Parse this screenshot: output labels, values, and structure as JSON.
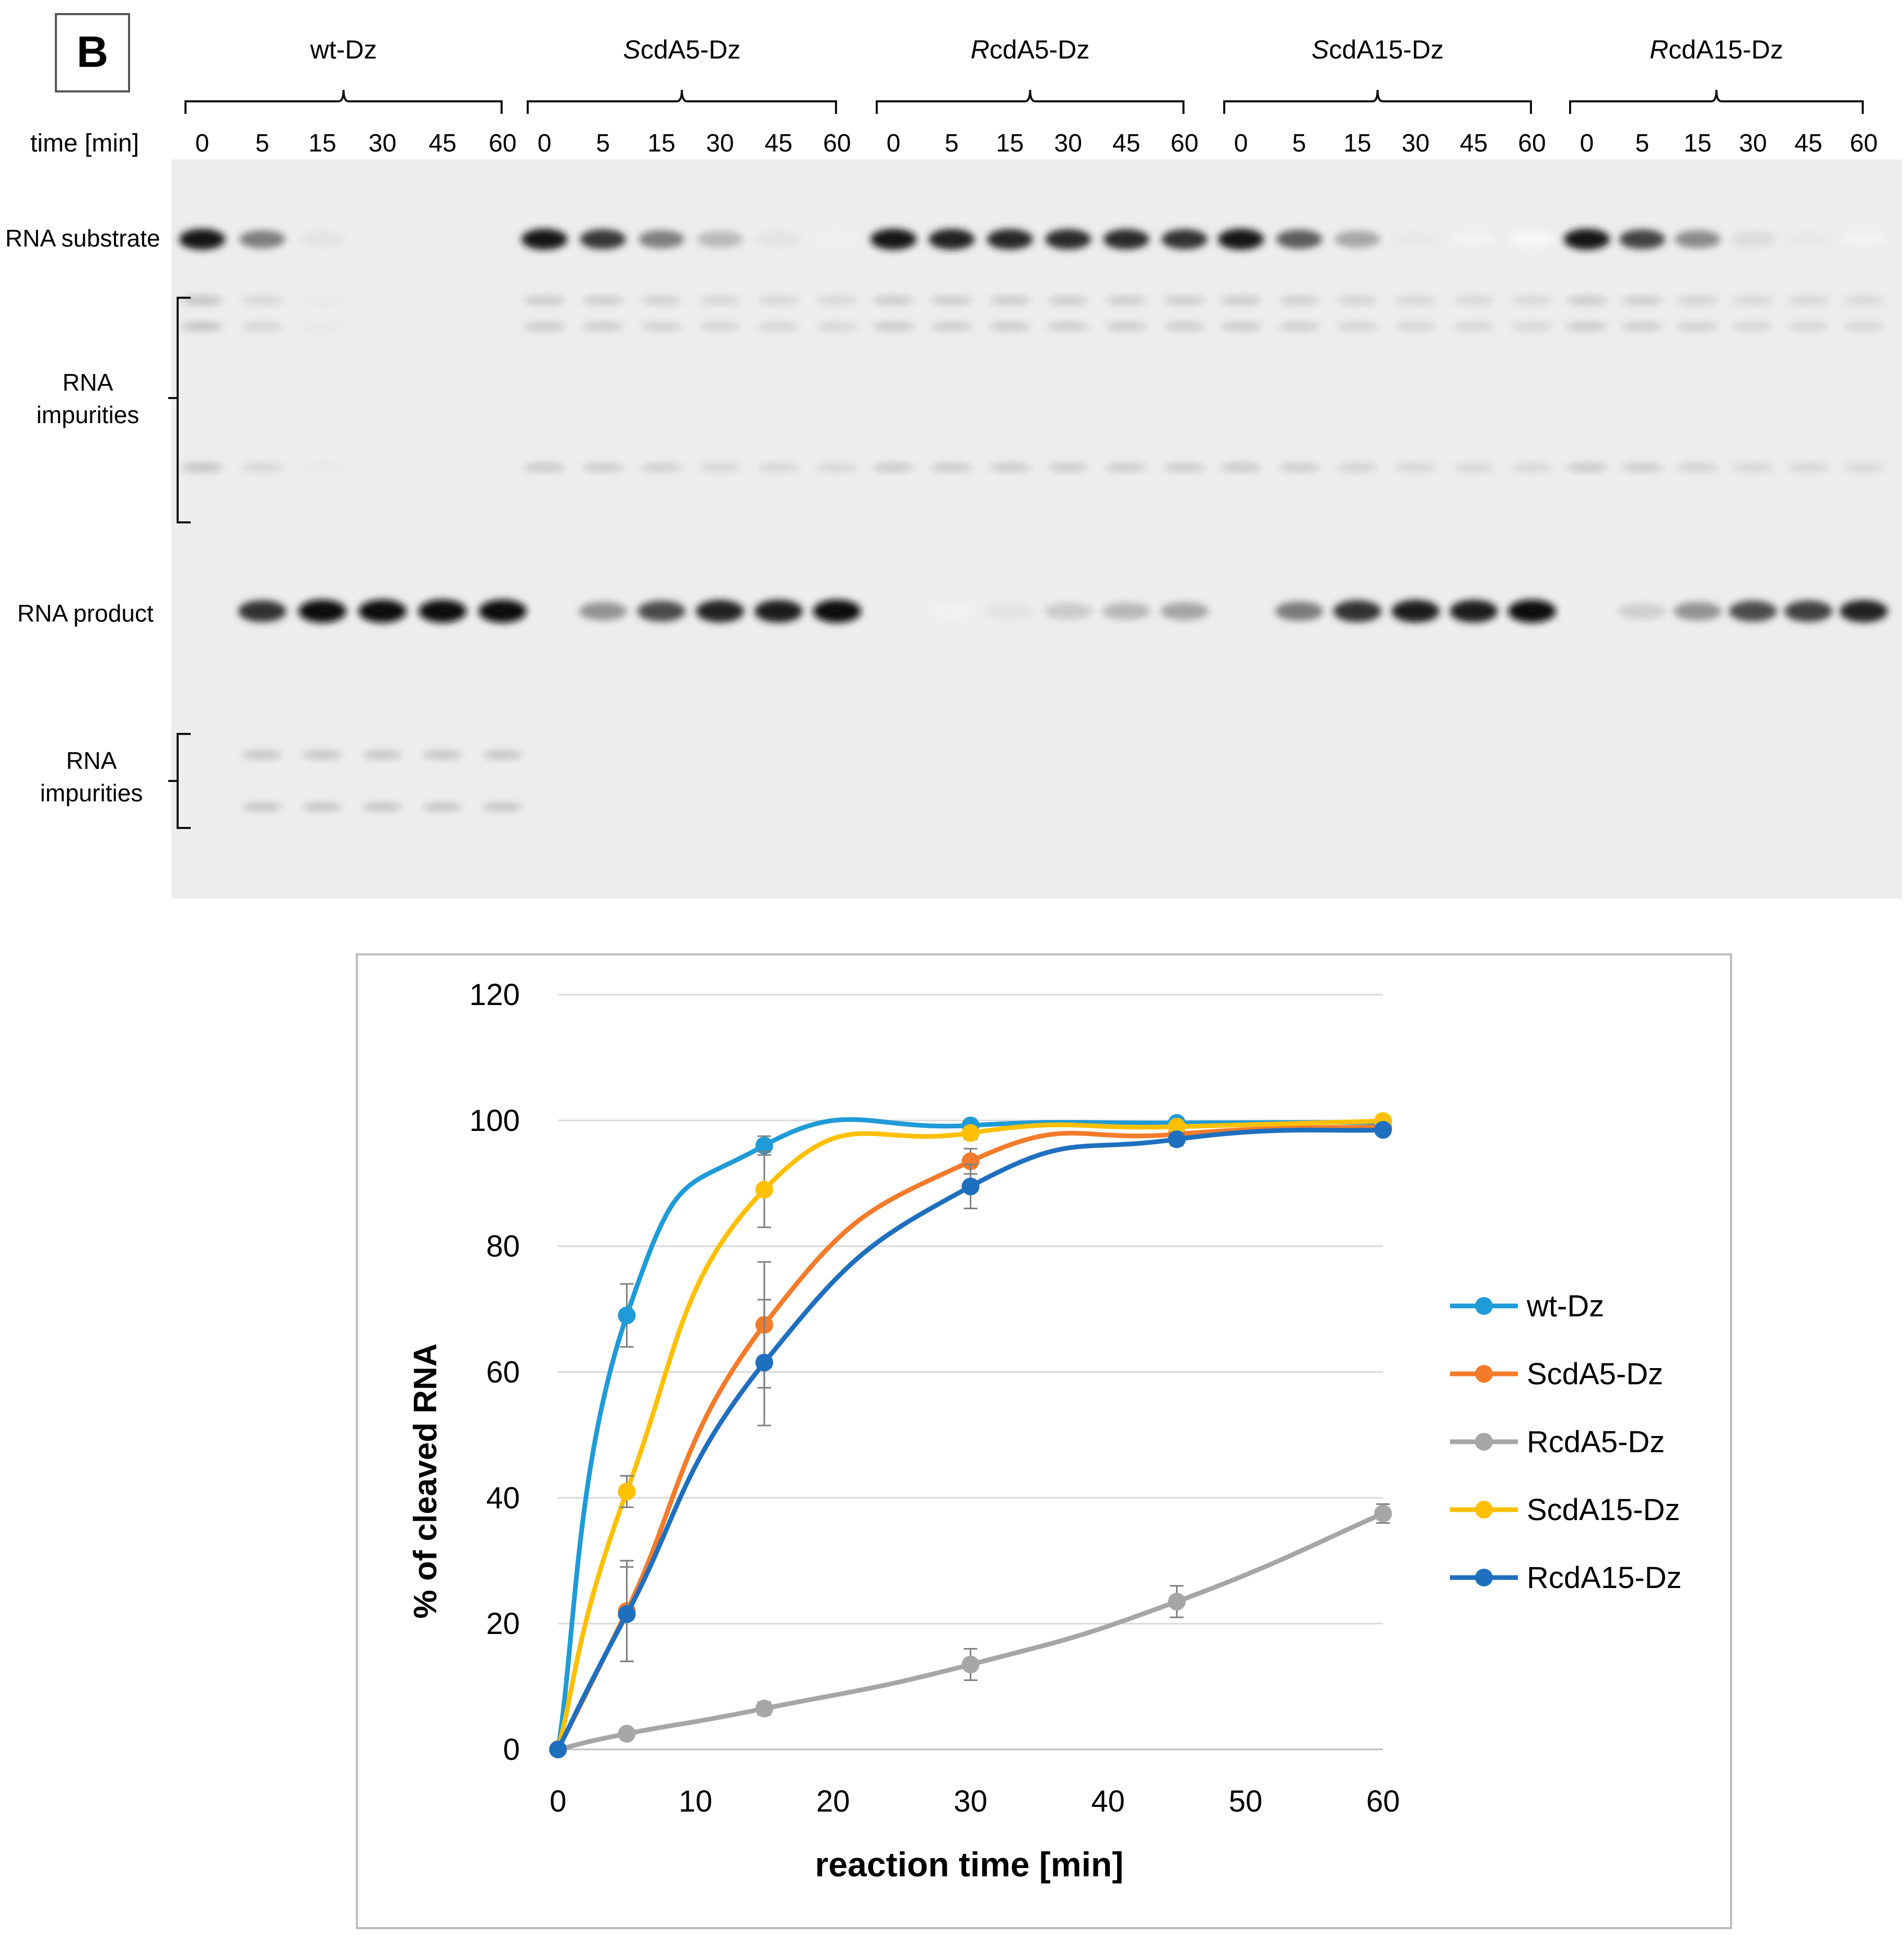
{
  "panel_label": "B",
  "gel": {
    "time_axis_label": "time [min]",
    "groups": [
      {
        "name": "wt-Dz",
        "prefix": "",
        "rest": "wt-Dz"
      },
      {
        "name": "ScdA5-Dz",
        "prefix": "S",
        "rest": "cdA5-Dz"
      },
      {
        "name": "RcdA5-Dz",
        "prefix": "R",
        "rest": "cdA5-Dz"
      },
      {
        "name": "ScdA15-Dz",
        "prefix": "S",
        "rest": "cdA15-Dz"
      },
      {
        "name": "RcdA15-Dz",
        "prefix": "R",
        "rest": "cdA15-Dz"
      }
    ],
    "time_points": [
      "0",
      "5",
      "15",
      "30",
      "45",
      "60"
    ],
    "band_labels": {
      "substrate": "RNA substrate",
      "impurities_top_line1": "RNA",
      "impurities_top_line2": "impurities",
      "product": "RNA product",
      "impurities_bottom_line1": "RNA",
      "impurities_bottom_line2": "impurities"
    },
    "substrate_intensity": [
      [
        1.0,
        0.55,
        0.12,
        0.0,
        0.0,
        0.0
      ],
      [
        1.0,
        0.85,
        0.55,
        0.3,
        0.12,
        0.06
      ],
      [
        1.0,
        0.95,
        0.92,
        0.9,
        0.9,
        0.88
      ],
      [
        1.0,
        0.7,
        0.38,
        0.1,
        0.05,
        0.03
      ],
      [
        1.0,
        0.8,
        0.5,
        0.15,
        0.1,
        0.05
      ]
    ],
    "product_intensity": [
      [
        0.0,
        0.85,
        1.0,
        1.0,
        1.0,
        1.0
      ],
      [
        0.0,
        0.45,
        0.75,
        0.92,
        0.95,
        1.0
      ],
      [
        0.0,
        0.06,
        0.12,
        0.22,
        0.3,
        0.38
      ],
      [
        0.0,
        0.55,
        0.85,
        0.95,
        0.95,
        1.0
      ],
      [
        0.0,
        0.2,
        0.45,
        0.75,
        0.8,
        0.92
      ]
    ]
  },
  "chart_data": {
    "type": "line",
    "title": "",
    "xlabel": "reaction time [min]",
    "ylabel": "% of cleaved RNA",
    "x": [
      0,
      5,
      15,
      30,
      45,
      60
    ],
    "xlim": [
      0,
      60
    ],
    "ylim": [
      0,
      120
    ],
    "xticks": [
      0,
      10,
      20,
      30,
      40,
      50,
      60
    ],
    "yticks": [
      0,
      20,
      40,
      60,
      80,
      100,
      120
    ],
    "grid": "horizontal",
    "legend_position": "right",
    "series": [
      {
        "name": "wt-Dz",
        "color": "#1f9bd7",
        "values": [
          0,
          69,
          96,
          99.2,
          99.6,
          99.7
        ],
        "errors": [
          0,
          5,
          1.5,
          0.5,
          0.5,
          0.5
        ]
      },
      {
        "name": "ScdA5-Dz",
        "color": "#f47b2b",
        "values": [
          0,
          22,
          67.5,
          93.5,
          97.8,
          99
        ],
        "errors": [
          0,
          8,
          10,
          2,
          0.8,
          0.5
        ]
      },
      {
        "name": "RcdA5-Dz",
        "color": "#a6a6a6",
        "values": [
          0,
          2.5,
          6.5,
          13.5,
          23.5,
          37.5
        ],
        "errors": [
          0,
          0.5,
          1,
          2.5,
          2.5,
          1.5
        ]
      },
      {
        "name": "ScdA15-Dz",
        "color": "#ffc000",
        "values": [
          0,
          41,
          89,
          98,
          99,
          99.9
        ],
        "errors": [
          0,
          2.5,
          6,
          1,
          0.5,
          0.3
        ]
      },
      {
        "name": "RcdA15-Dz",
        "color": "#1f6fbf",
        "values": [
          0,
          21.5,
          61.5,
          89.5,
          97,
          98.5
        ],
        "errors": [
          0,
          7.5,
          10,
          3.5,
          1,
          0.5
        ]
      }
    ]
  }
}
